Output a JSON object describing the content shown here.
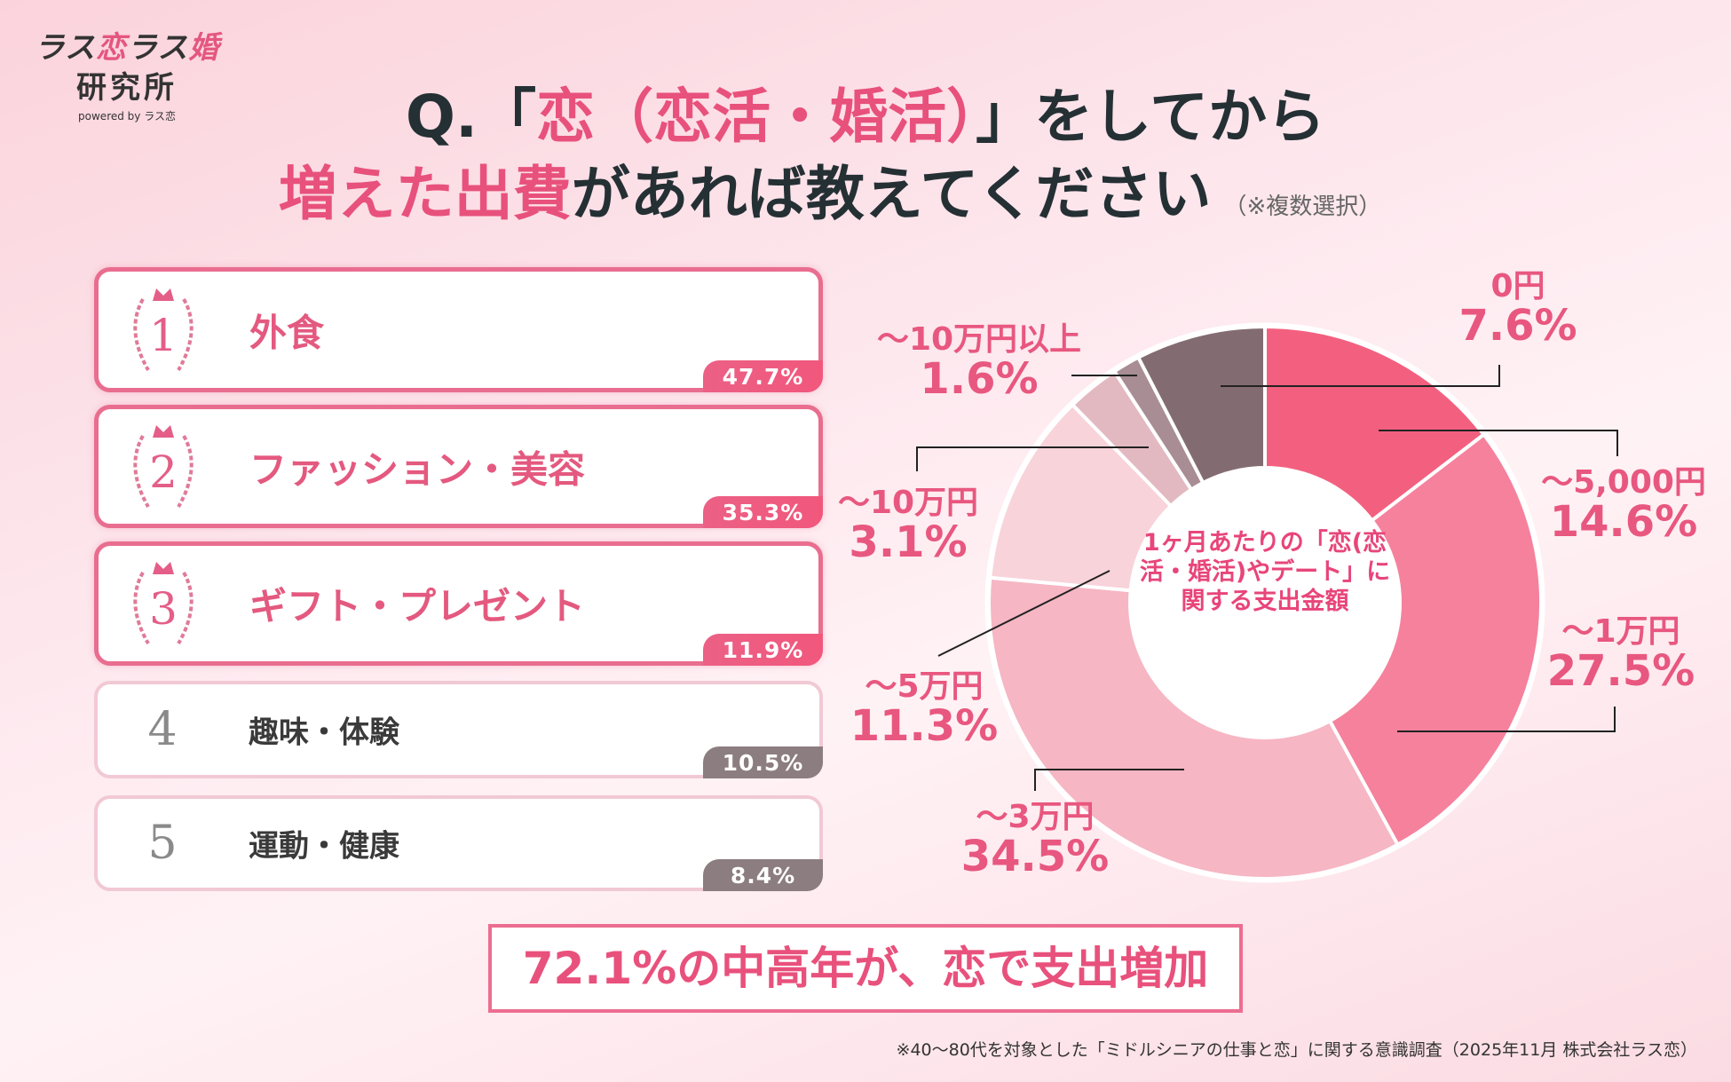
{
  "logo": {
    "line1_a": "ラス",
    "line1_b": "恋",
    "line1_c": "ラス",
    "line1_d": "婚",
    "line2": "研究所",
    "powered": "powered by ラス恋"
  },
  "title": {
    "q_prefix": "Q.「",
    "q_pink": "恋（恋活・婚活）",
    "q_suffix": "」をしてから",
    "line2_pink": "増えた出費",
    "line2_dark": "があれば教えてください",
    "note": "（※複数選択）"
  },
  "ranking": [
    {
      "rank": "1",
      "label": "外食",
      "value": "47.7%"
    },
    {
      "rank": "2",
      "label": "ファッション・美容",
      "value": "35.3%"
    },
    {
      "rank": "3",
      "label": "ギフト・プレゼント",
      "value": "11.9%"
    },
    {
      "rank": "4",
      "label": "趣味・体験",
      "value": "10.5%"
    },
    {
      "rank": "5",
      "label": "運動・健康",
      "value": "8.4%"
    }
  ],
  "banner": "72.1%の中高年が、恋で支出増加",
  "footnote": "※40〜80代を対象とした「ミドルシニアの仕事と恋」に関する意識調査（2025年11月 株式会社ラス恋）",
  "chart_data": {
    "type": "pie",
    "variant": "donut",
    "title": "1ヶ月あたりの「恋(恋活・婚活)やデート」に関する支出金額",
    "unit": "%",
    "slices": [
      {
        "label": "〜5,000円",
        "value": 14.6,
        "display": "14.6%",
        "color": "#f3607f"
      },
      {
        "label": "〜1万円",
        "value": 27.5,
        "display": "27.5%",
        "color": "#f6819c"
      },
      {
        "label": "〜3万円",
        "value": 34.5,
        "display": "34.5%",
        "color": "#f6b6c3"
      },
      {
        "label": "〜5万円",
        "value": 11.3,
        "display": "11.3%",
        "color": "#f8d3da"
      },
      {
        "label": "〜10万円",
        "value": 3.1,
        "display": "3.1%",
        "color": "#e3b9c1"
      },
      {
        "label": "〜10万円以上",
        "value": 1.6,
        "display": "1.6%",
        "color": "#a88d94"
      },
      {
        "label": "0円",
        "value": 7.6,
        "display": "7.6%",
        "color": "#836c71"
      }
    ]
  }
}
